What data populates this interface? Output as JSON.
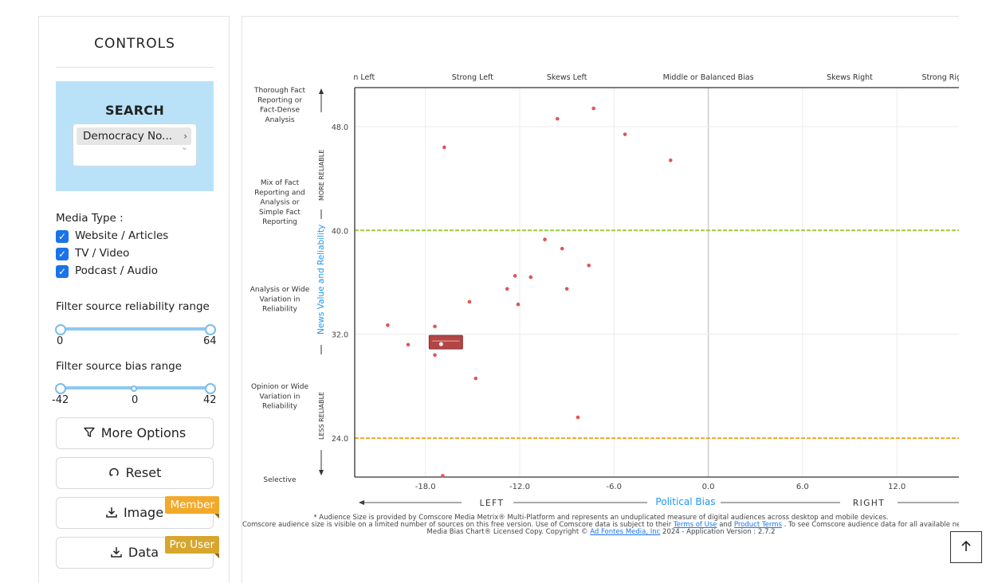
{
  "controls": {
    "title": "CONTROLS",
    "search": {
      "title": "SEARCH",
      "selected": "Democracy No...",
      "chip_arrow": "›",
      "caret": "⌄"
    },
    "media_type": {
      "label": "Media Type :",
      "options": [
        {
          "label": "Website / Articles",
          "checked": true
        },
        {
          "label": "TV / Video",
          "checked": true
        },
        {
          "label": "Podcast / Audio",
          "checked": true
        }
      ]
    },
    "reliability_filter": {
      "label": "Filter source reliability range",
      "min": "0",
      "max": "64"
    },
    "bias_filter": {
      "label": "Filter source bias range",
      "min": "-42",
      "mid": "0",
      "max": "42"
    },
    "buttons": {
      "more_options": "More Options",
      "reset": "Reset",
      "image": "Image",
      "data": "Data"
    },
    "badges": {
      "member": "Member",
      "pro_user": "Pro User",
      "member_color": "#f2a92a",
      "pro_color": "#d6a62d"
    }
  },
  "chart": {
    "bias_categories": [
      "n Left",
      "Strong Left",
      "Skews Left",
      "Middle or Balanced Bias",
      "Skews Right",
      "Strong Righ"
    ],
    "reliability_categories": [
      [
        "Thorough Fact",
        "Reporting or",
        "Fact-Dense",
        "Analysis"
      ],
      [
        "Mix of Fact",
        "Reporting and",
        "Analysis or",
        "Simple Fact",
        "Reporting"
      ],
      [
        "Analysis or Wide",
        "Variation in",
        "Reliability"
      ],
      [
        "Opinion or Wide",
        "Variation in",
        "Reliability"
      ],
      [
        "Selective"
      ]
    ],
    "more_reliable": "MORE RELIABLE",
    "less_reliable": "LESS RELIABLE",
    "y_axis_title": "News Value and Reliability",
    "x_axis_title": "Political Bias",
    "left_label": "LEFT",
    "right_label": "RIGHT",
    "accent_color": "#2196f3",
    "point_color": "#e05555",
    "green_line_color": "#9ccc3c",
    "orange_line_color": "#f5a623"
  },
  "chart_data": {
    "type": "scatter",
    "xlabel": "Political Bias",
    "ylabel": "News Value and Reliability",
    "xlim": [
      -22.5,
      16
    ],
    "ylim": [
      21.0,
      51.0
    ],
    "xticks": [
      -18,
      -12,
      -6,
      0,
      6,
      12
    ],
    "xtick_labels": [
      "-18.0",
      "-12.0",
      "-6.0",
      "0.0",
      "6.0",
      "12.0"
    ],
    "yticks": [
      48,
      40,
      32,
      24
    ],
    "ytick_labels": [
      "48.0",
      "40.0",
      "32.0",
      "24.0"
    ],
    "reference_lines": [
      {
        "y": 40,
        "color": "green"
      },
      {
        "y": 24,
        "color": "orange"
      }
    ],
    "grid": true,
    "points": [
      {
        "x": -9.6,
        "y": 48.6
      },
      {
        "x": -7.3,
        "y": 49.4
      },
      {
        "x": -5.3,
        "y": 47.4
      },
      {
        "x": -2.4,
        "y": 45.4
      },
      {
        "x": -16.8,
        "y": 46.4
      },
      {
        "x": -10.4,
        "y": 39.3
      },
      {
        "x": -9.3,
        "y": 38.6
      },
      {
        "x": -7.6,
        "y": 37.3
      },
      {
        "x": -12.3,
        "y": 36.5
      },
      {
        "x": -11.3,
        "y": 36.4
      },
      {
        "x": -12.8,
        "y": 35.5
      },
      {
        "x": -9.0,
        "y": 35.5
      },
      {
        "x": -15.2,
        "y": 34.5
      },
      {
        "x": -12.1,
        "y": 34.3
      },
      {
        "x": -20.4,
        "y": 32.7
      },
      {
        "x": -17.4,
        "y": 32.6
      },
      {
        "x": -19.1,
        "y": 31.2
      },
      {
        "x": -17.4,
        "y": 30.4
      },
      {
        "x": -14.8,
        "y": 28.6
      },
      {
        "x": -8.3,
        "y": 25.6
      },
      {
        "x": -16.9,
        "y": 21.1
      }
    ],
    "highlight": {
      "x": -16.7,
      "y": 31.3
    }
  },
  "footnote": {
    "line1": "* Audience Size is provided by Comscore Media Metrix® Multi-Platform and represents an unduplicated measure of digital audiences across desktop and mobile devices.",
    "line2_a": "Comscore audience size is visible on a limited number of sources on this free version. Use of Comscore data is subject to their",
    "terms_of_use": "Terms of Use",
    "line2_and": "and",
    "product_terms": "Product Terms",
    "line2_b": ". To see Comscore audience data for all available news sources, learn about",
    "line3_a": "Media Bias Chart® Licensed Copy. Copyright ©",
    "ad_fontes": "Ad Fontes Media, Inc",
    "line3_b": "2024 - Application Version : 2.7.2"
  },
  "scroll_top_icon": "arrow-up-icon"
}
